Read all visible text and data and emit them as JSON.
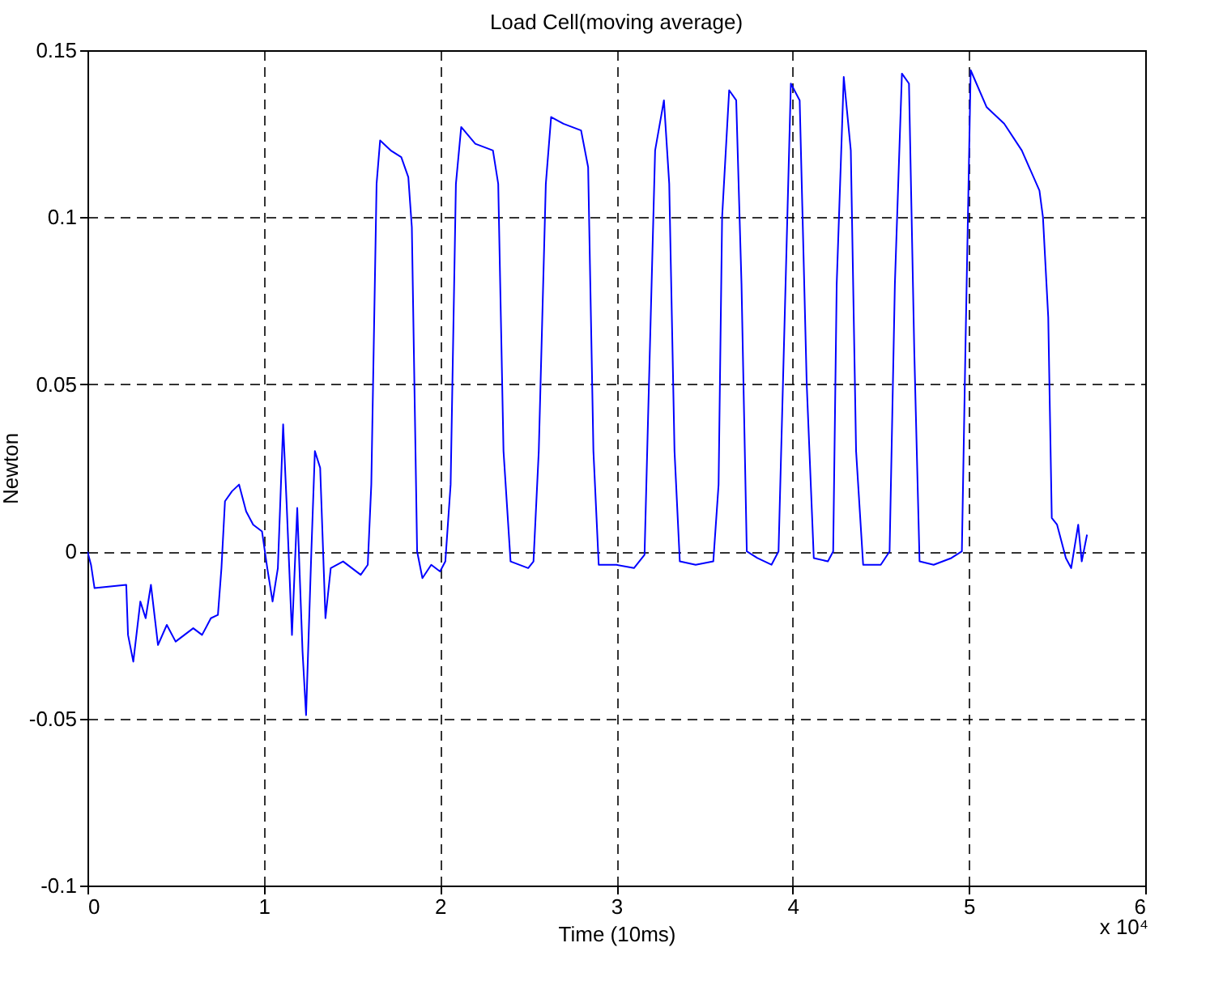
{
  "chart_data": {
    "type": "line",
    "title": "Load Cell(moving average)",
    "xlabel": "Time (10ms)",
    "ylabel": "Newton",
    "annotations": [
      "x 10⁴"
    ],
    "xlim": [
      0,
      6
    ],
    "xticks": [
      0,
      1,
      2,
      3,
      4,
      5,
      6
    ],
    "ylim": [
      -0.1,
      0.15
    ],
    "yticks": [
      -0.1,
      -0.05,
      0,
      0.05,
      0.1,
      0.15
    ],
    "grid": true,
    "line_style": "solid",
    "marker": "none",
    "series": [
      {
        "color": "#0000ff",
        "x": [
          0.0,
          0.02,
          0.04,
          0.22,
          0.23,
          0.26,
          0.3,
          0.33,
          0.36,
          0.4,
          0.45,
          0.5,
          0.55,
          0.6,
          0.65,
          0.7,
          0.74,
          0.76,
          0.78,
          0.82,
          0.86,
          0.9,
          0.94,
          0.99,
          1.02,
          1.05,
          1.08,
          1.11,
          1.13,
          1.16,
          1.19,
          1.22,
          1.24,
          1.27,
          1.29,
          1.32,
          1.35,
          1.38,
          1.45,
          1.5,
          1.55,
          1.59,
          1.61,
          1.64,
          1.66,
          1.72,
          1.78,
          1.82,
          1.84,
          1.87,
          1.9,
          1.95,
          2.0,
          2.03,
          2.06,
          2.09,
          2.12,
          2.2,
          2.3,
          2.33,
          2.36,
          2.4,
          2.5,
          2.53,
          2.56,
          2.6,
          2.63,
          2.7,
          2.8,
          2.84,
          2.87,
          2.9,
          3.0,
          3.1,
          3.16,
          3.18,
          3.22,
          3.27,
          3.3,
          3.33,
          3.36,
          3.45,
          3.55,
          3.58,
          3.6,
          3.64,
          3.68,
          3.71,
          3.74,
          3.8,
          3.88,
          3.92,
          3.95,
          3.99,
          4.04,
          4.08,
          4.12,
          4.2,
          4.23,
          4.25,
          4.29,
          4.33,
          4.36,
          4.4,
          4.5,
          4.55,
          4.58,
          4.62,
          4.66,
          4.69,
          4.72,
          4.8,
          4.9,
          4.96,
          4.98,
          5.01,
          5.1,
          5.2,
          5.3,
          5.4,
          5.42,
          5.45,
          5.47,
          5.5,
          5.55,
          5.58,
          5.62,
          5.64,
          5.67
        ],
        "values": [
          0.0,
          -0.004,
          -0.011,
          -0.01,
          -0.025,
          -0.033,
          -0.015,
          -0.02,
          -0.01,
          -0.028,
          -0.022,
          -0.027,
          -0.025,
          -0.023,
          -0.025,
          -0.02,
          -0.019,
          -0.005,
          0.015,
          0.018,
          0.02,
          0.012,
          0.008,
          0.006,
          -0.005,
          -0.015,
          -0.005,
          0.038,
          0.014,
          -0.025,
          0.013,
          -0.03,
          -0.049,
          0.0,
          0.03,
          0.025,
          -0.02,
          -0.005,
          -0.003,
          -0.005,
          -0.007,
          -0.004,
          0.02,
          0.11,
          0.123,
          0.12,
          0.118,
          0.112,
          0.097,
          0.0,
          -0.008,
          -0.004,
          -0.006,
          -0.003,
          0.02,
          0.11,
          0.127,
          0.122,
          0.12,
          0.11,
          0.03,
          -0.003,
          -0.005,
          -0.003,
          0.03,
          0.11,
          0.13,
          0.128,
          0.126,
          0.115,
          0.03,
          -0.004,
          -0.004,
          -0.005,
          -0.001,
          0.04,
          0.12,
          0.135,
          0.11,
          0.03,
          -0.003,
          -0.004,
          -0.003,
          0.02,
          0.1,
          0.138,
          0.135,
          0.08,
          0.0,
          -0.002,
          -0.004,
          0.0,
          0.06,
          0.14,
          0.135,
          0.05,
          -0.002,
          -0.003,
          0.0,
          0.08,
          0.142,
          0.12,
          0.03,
          -0.004,
          -0.004,
          0.0,
          0.08,
          0.143,
          0.14,
          0.06,
          -0.003,
          -0.004,
          -0.002,
          0.0,
          0.06,
          0.144,
          0.133,
          0.128,
          0.12,
          0.108,
          0.1,
          0.07,
          0.01,
          0.008,
          -0.002,
          -0.005,
          0.008,
          -0.003,
          0.005
        ]
      }
    ]
  }
}
